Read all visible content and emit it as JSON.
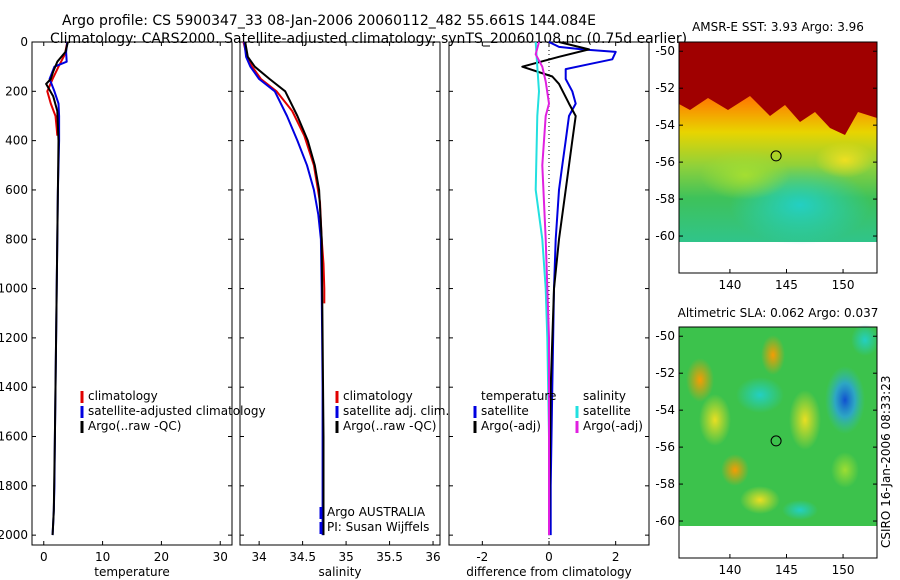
{
  "header": {
    "title_line1": "Argo profile: CS 5900347_33 08-Jan-2006 20060112_482 55.661S 144.084E",
    "title_line2": "Climatology: CARS2000. Satellite-adjusted climatology: synTS_20060108.nc (0.75d earlier)"
  },
  "stamp": "CSIRO 16-Jan-2006 08:33:23",
  "colors": {
    "red": "#e00000",
    "blue": "#0000e0",
    "black": "#000000",
    "cyan": "#22e0e0",
    "magenta": "#e020e0"
  },
  "maps": [
    {
      "title": "AMSR-E SST: 3.93 Argo: 3.96",
      "lon_range": [
        135.5,
        153
      ],
      "lat_range": [
        -62,
        -49.5
      ],
      "xticks": [
        140,
        145,
        150
      ],
      "yticks": [
        -50,
        -52,
        -54,
        -56,
        -58,
        -60
      ],
      "float": {
        "lon": 144.084,
        "lat": -55.661
      }
    },
    {
      "title": "Altimetric SLA: 0.062 Argo: 0.037",
      "lon_range": [
        135.5,
        153
      ],
      "lat_range": [
        -62,
        -49.5
      ],
      "xticks": [
        140,
        145,
        150
      ],
      "yticks": [
        -50,
        -52,
        -54,
        -56,
        -58,
        -60
      ],
      "float": {
        "lon": 144.084,
        "lat": -55.661
      }
    }
  ],
  "chart_data": [
    {
      "type": "line",
      "name": "temperature",
      "xlabel": "temperature",
      "ylabel": "",
      "xlim": [
        -2,
        32
      ],
      "ylim": [
        2040,
        0
      ],
      "xticks": [
        0,
        10,
        20,
        30
      ],
      "yticks": [
        0,
        200,
        400,
        600,
        800,
        1000,
        1200,
        1400,
        1600,
        1800,
        2000
      ],
      "legend": [
        "climatology",
        "satellite-adjusted climatology",
        "Argo(..raw -QC)"
      ],
      "series": [
        {
          "name": "climatology",
          "color": "red",
          "x": [
            4.0,
            3.6,
            2.5,
            1.5,
            0.6,
            1.2,
            2.0,
            2.2,
            2.3
          ],
          "y": [
            0,
            50,
            100,
            150,
            200,
            250,
            300,
            350,
            380
          ]
        },
        {
          "name": "satellite-adjusted climatology",
          "color": "blue",
          "x": [
            4.0,
            3.8,
            3.9,
            1.8,
            1.0,
            1.8,
            2.5,
            2.6,
            2.6,
            2.5,
            2.4,
            2.3,
            2.2,
            2.1,
            2.0,
            1.9,
            1.8,
            1.7,
            1.5
          ],
          "y": [
            0,
            40,
            80,
            100,
            150,
            200,
            250,
            300,
            400,
            500,
            600,
            800,
            1000,
            1200,
            1400,
            1600,
            1800,
            1900,
            2000
          ]
        },
        {
          "name": "Argo(..raw -QC)",
          "color": "black",
          "x": [
            4.1,
            3.7,
            2.3,
            1.6,
            1.2,
            0.4,
            1.6,
            2.3,
            2.5,
            2.3,
            2.1,
            1.9,
            1.7,
            1.5
          ],
          "y": [
            0,
            40,
            80,
            120,
            150,
            170,
            220,
            280,
            400,
            800,
            1200,
            1600,
            1900,
            2000
          ]
        }
      ]
    },
    {
      "type": "line",
      "name": "salinity",
      "xlabel": "salinity",
      "xlim": [
        33.78,
        36.08
      ],
      "ylim": [
        2040,
        0
      ],
      "xticks": [
        34,
        34.5,
        35,
        35.5,
        36
      ],
      "yticks": [
        0,
        200,
        400,
        600,
        800,
        1000,
        1200,
        1400,
        1600,
        1800,
        2000
      ],
      "legend": [
        "climatology",
        "satellite adj. clim.",
        "Argo(..raw -QC)"
      ],
      "annotations": [
        "Argo AUSTRALIA",
        "PI: Susan Wijffels"
      ],
      "series": [
        {
          "name": "climatology",
          "color": "red",
          "x": [
            33.82,
            33.86,
            33.92,
            34.02,
            34.2,
            34.38,
            34.52,
            34.63,
            34.7,
            34.72,
            34.74,
            34.75,
            34.75
          ],
          "y": [
            0,
            60,
            100,
            150,
            200,
            280,
            380,
            500,
            650,
            800,
            900,
            1000,
            1060
          ]
        },
        {
          "name": "satellite adj. clim.",
          "color": "blue",
          "x": [
            33.83,
            33.85,
            33.9,
            34.0,
            34.18,
            34.32,
            34.44,
            34.55,
            34.63,
            34.68,
            34.71,
            34.72,
            34.73,
            34.73,
            34.73
          ],
          "y": [
            0,
            60,
            100,
            150,
            200,
            300,
            400,
            500,
            600,
            700,
            800,
            1000,
            1400,
            1800,
            2000
          ]
        },
        {
          "name": "Argo(..raw -QC)",
          "color": "black",
          "x": [
            33.84,
            33.87,
            33.95,
            34.12,
            34.3,
            34.44,
            34.56,
            34.64,
            34.69,
            34.72,
            34.73,
            34.74,
            34.74
          ],
          "y": [
            0,
            60,
            100,
            150,
            200,
            300,
            400,
            500,
            600,
            800,
            1200,
            1600,
            2000
          ]
        }
      ]
    },
    {
      "type": "line",
      "name": "difference",
      "xlabel": "difference from climatology",
      "xlim": [
        -3,
        3
      ],
      "ylim": [
        2040,
        0
      ],
      "xticks": [
        -2,
        0,
        2
      ],
      "yticks": [
        0,
        200,
        400,
        600,
        800,
        1000,
        1200,
        1400,
        1600,
        1800,
        2000
      ],
      "legend_titles": [
        "temperature",
        "salinity"
      ],
      "legend": [
        "satellite",
        "Argo(-adj)",
        "satellite",
        "Argo(-adj)"
      ],
      "series": [
        {
          "name": "temperature satellite",
          "color": "blue",
          "x": [
            0.0,
            0.3,
            1.0,
            2.0,
            1.9,
            1.2,
            0.5,
            0.5,
            0.7,
            0.8,
            0.6,
            0.5,
            0.4,
            0.3,
            0.2,
            0.15,
            0.1,
            0.05,
            0.05
          ],
          "y": [
            0,
            20,
            30,
            40,
            70,
            90,
            110,
            150,
            200,
            250,
            300,
            400,
            500,
            600,
            800,
            1000,
            1400,
            1800,
            2000
          ]
        },
        {
          "name": "temperature Argo(-adj)",
          "color": "black",
          "x": [
            0.3,
            1.2,
            0.3,
            -0.8,
            0.1,
            0.3,
            0.6,
            0.8,
            0.7,
            0.5,
            0.3,
            0.15,
            0.05,
            0.0
          ],
          "y": [
            0,
            30,
            60,
            100,
            140,
            170,
            250,
            300,
            400,
            600,
            800,
            1000,
            1400,
            2000
          ]
        },
        {
          "name": "salinity satellite",
          "color": "cyan",
          "x": [
            -0.4,
            -0.35,
            -0.3,
            -0.35,
            -0.4,
            -0.2,
            -0.15,
            -0.1,
            -0.05,
            0.0,
            0.0
          ],
          "y": [
            0,
            100,
            200,
            300,
            600,
            800,
            900,
            1000,
            1200,
            1600,
            2000
          ]
        },
        {
          "name": "salinity Argo(-adj)",
          "color": "magenta",
          "x": [
            -0.3,
            -0.4,
            -0.2,
            -0.1,
            0.0,
            -0.1,
            -0.2,
            -0.1,
            0.0,
            0.0
          ],
          "y": [
            0,
            50,
            100,
            160,
            250,
            300,
            500,
            800,
            1200,
            2000
          ]
        }
      ]
    }
  ]
}
